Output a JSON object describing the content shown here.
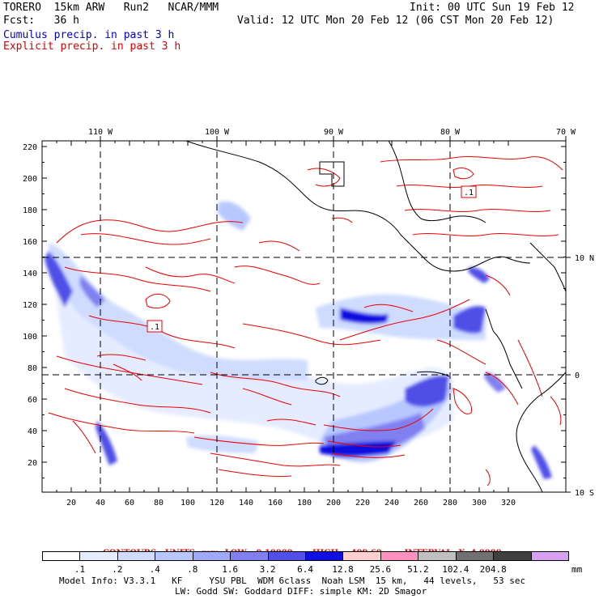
{
  "header": {
    "model": "TORERO  15km ARW   Run2   NCAR/MMM",
    "init": "Init: 00 UTC Sun 19 Feb 12",
    "fcst": "Fcst:   36 h",
    "valid": "Valid: 12 UTC Mon 20 Feb 12 (06 CST Mon 20 Feb 12)",
    "cumulus": "Cumulus precip. in past 3 h",
    "explicit": "Explicit precip. in past 3 h"
  },
  "colors": {
    "cumulus_text": "#0000cc",
    "explicit_text": "#dd0000",
    "contour": "#ee0000",
    "land_outline": "#000000"
  },
  "map": {
    "top_labels": [
      "110 W",
      "100 W",
      "90 W",
      "80 W",
      "70 W"
    ],
    "right_labels": [
      "10 N",
      "0",
      "10 S"
    ],
    "y_ticks": [
      "220",
      "200",
      "180",
      "160",
      "140",
      "120",
      "100",
      "80",
      "60",
      "40",
      "20"
    ],
    "x_ticks": [
      "20",
      "40",
      "60",
      "80",
      "100",
      "120",
      "140",
      "160",
      "180",
      "200",
      "220",
      "240",
      "260",
      "280",
      "300",
      "320"
    ],
    "box_labels": [
      ".1",
      ".1"
    ]
  },
  "contours_line": {
    "label": "CONTOURS:",
    "units": "UNITS=mm",
    "low": "LOW= 0.10000",
    "high": "HIGH=  409.60",
    "interval": "INTERVAL=X  4.0000"
  },
  "colorbar": {
    "colors": [
      "#ffffff",
      "#e6ecff",
      "#cfdcff",
      "#b8c8ff",
      "#a0a8f8",
      "#8080f0",
      "#5050e8",
      "#1010e0",
      "#ffd0d0",
      "#ff90c0",
      "#c0c0c0",
      "#707070",
      "#404040",
      "#d8a0f0"
    ],
    "labels": [
      ".1",
      ".2",
      ".4",
      ".8",
      "1.6",
      "3.2",
      "6.4",
      "12.8",
      "25.6",
      "51.2",
      "102.4",
      "204.8"
    ],
    "unit": "mm"
  },
  "footer": {
    "line1": "Model Info: V3.3.1   KF     YSU PBL  WDM 6class  Noah LSM  15 km,   44 levels,   53 sec",
    "line2": "LW: Godd SW: Goddard DIFF: simple KM: 2D Smagor"
  }
}
